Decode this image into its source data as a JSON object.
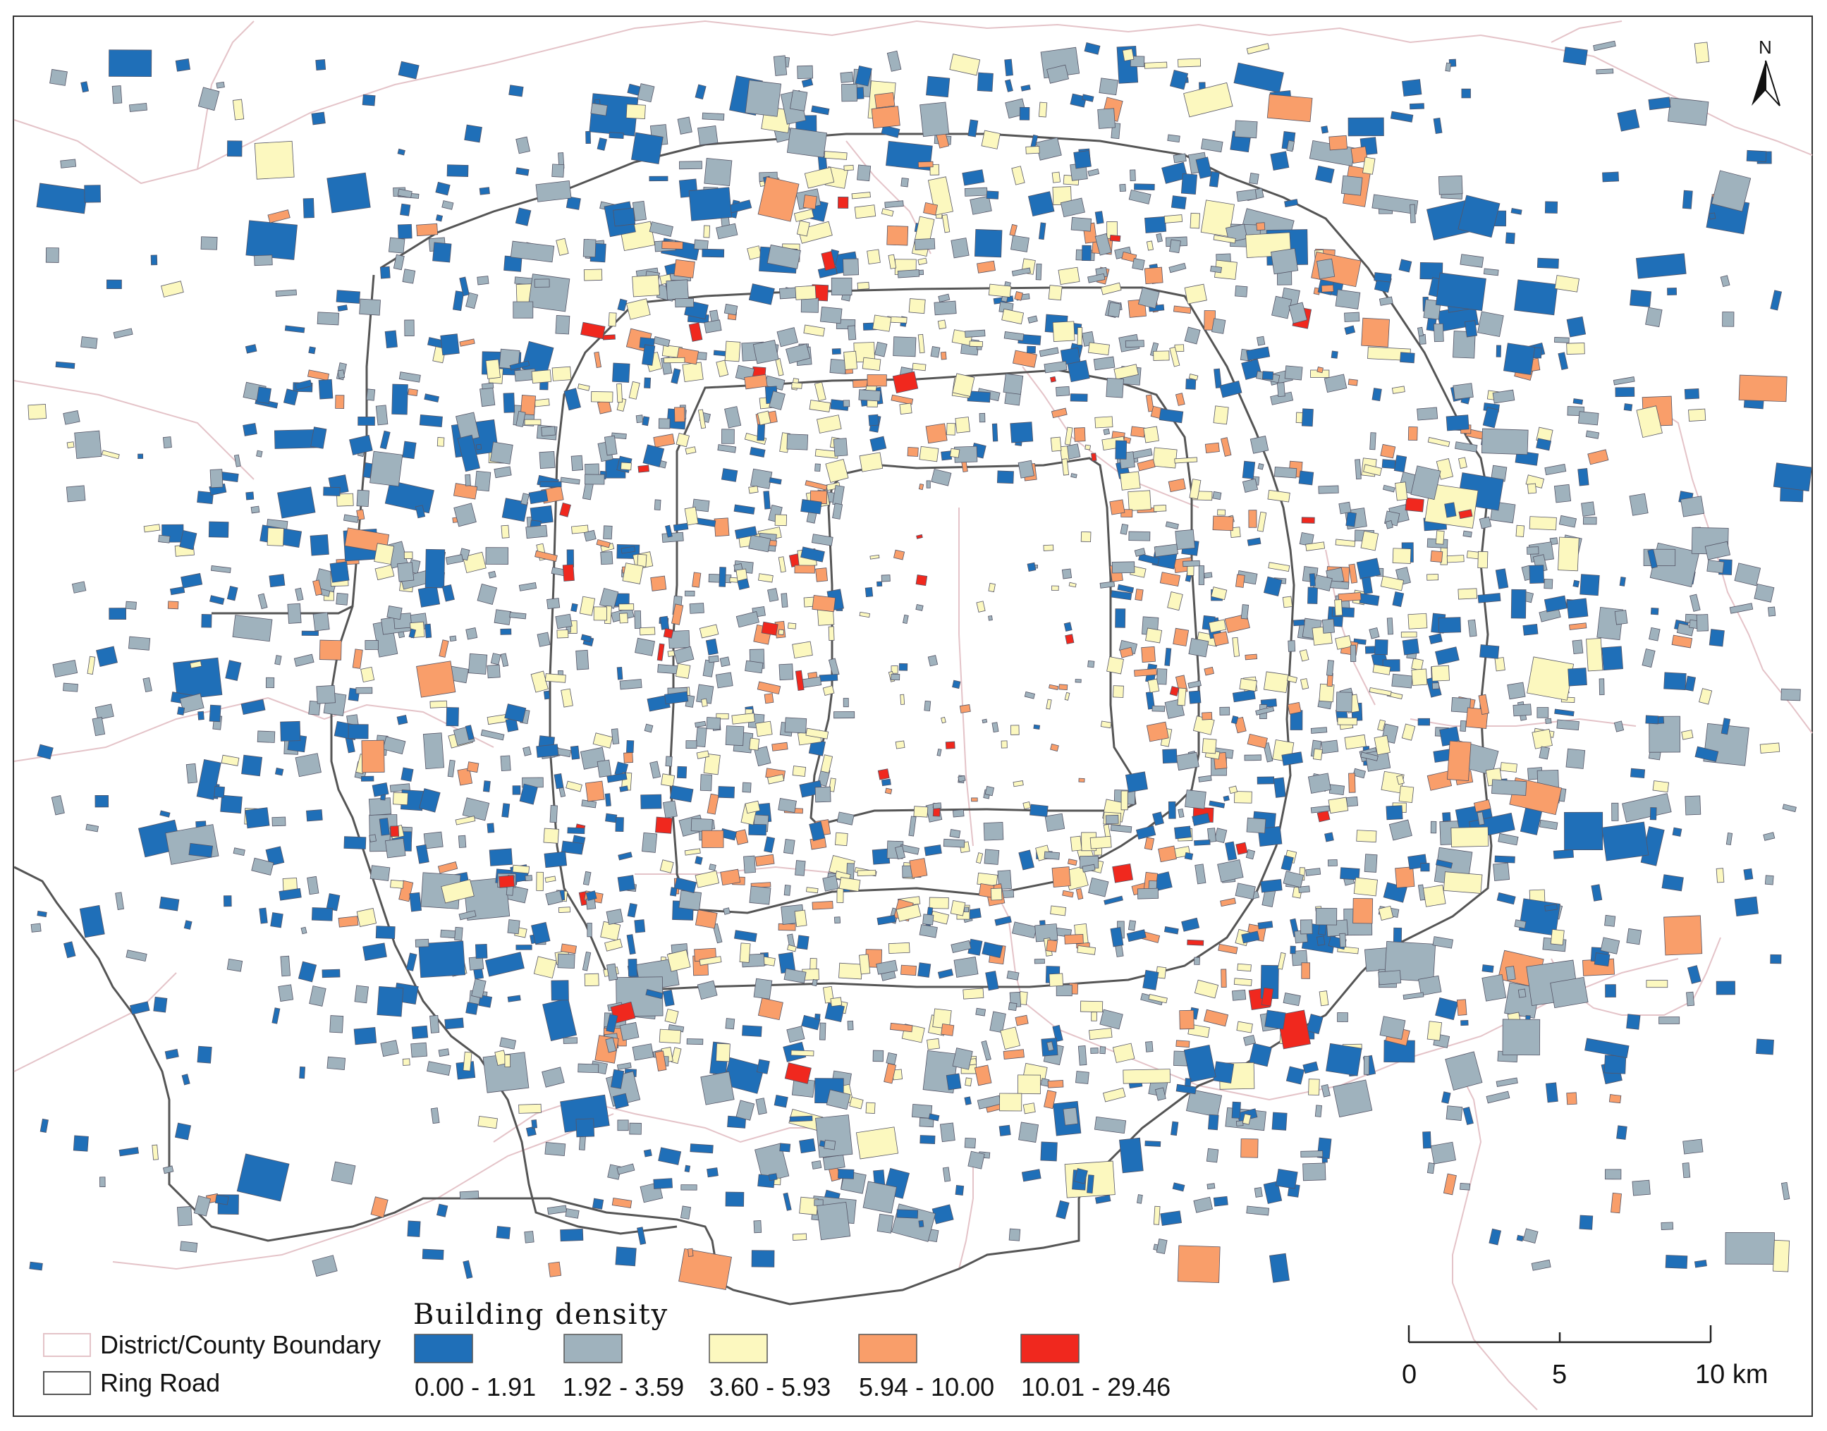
{
  "map": {
    "legend": {
      "boundary_label": "District/County Boundary",
      "ring_label": "Ring Road",
      "density_title": "Building density",
      "classes": [
        {
          "label": "0.00 - 1.91",
          "color": "#1f6fb8"
        },
        {
          "label": "1.92 - 3.59",
          "color": "#9fb2bd"
        },
        {
          "label": "3.60 - 5.93",
          "color": "#fcf8bf"
        },
        {
          "label": "5.94 - 10.00",
          "color": "#f99e6a"
        },
        {
          "label": "10.01 - 29.46",
          "color": "#f0281e"
        }
      ]
    },
    "scale_bar": {
      "labels": [
        "0",
        "5",
        "10 km"
      ]
    },
    "north_arrow": {
      "label": "N"
    },
    "colors": {
      "boundary": "#e4c3c8",
      "ring": "#555555",
      "outline": "#333333"
    }
  }
}
